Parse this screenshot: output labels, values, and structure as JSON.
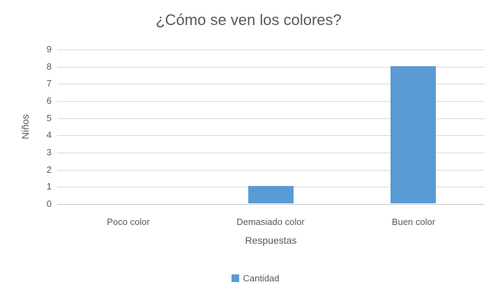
{
  "chart_data": {
    "type": "bar",
    "title": "¿Cómo se ven los colores?",
    "xlabel": "Respuestas",
    "ylabel": "Niños",
    "categories": [
      "Poco color",
      "Demasiado color",
      "Buen color"
    ],
    "series": [
      {
        "name": "Cantidad",
        "values": [
          0,
          1,
          8
        ]
      }
    ],
    "ylim": [
      0,
      9
    ],
    "ytick_step": 1,
    "grid": true,
    "legend_position": "bottom-center",
    "colors": {
      "bar": "#5B9BD5",
      "text": "#595959",
      "gridline": "#D9D9D9",
      "axis_line": "#C6C6C6",
      "background": "#FFFFFF"
    }
  }
}
